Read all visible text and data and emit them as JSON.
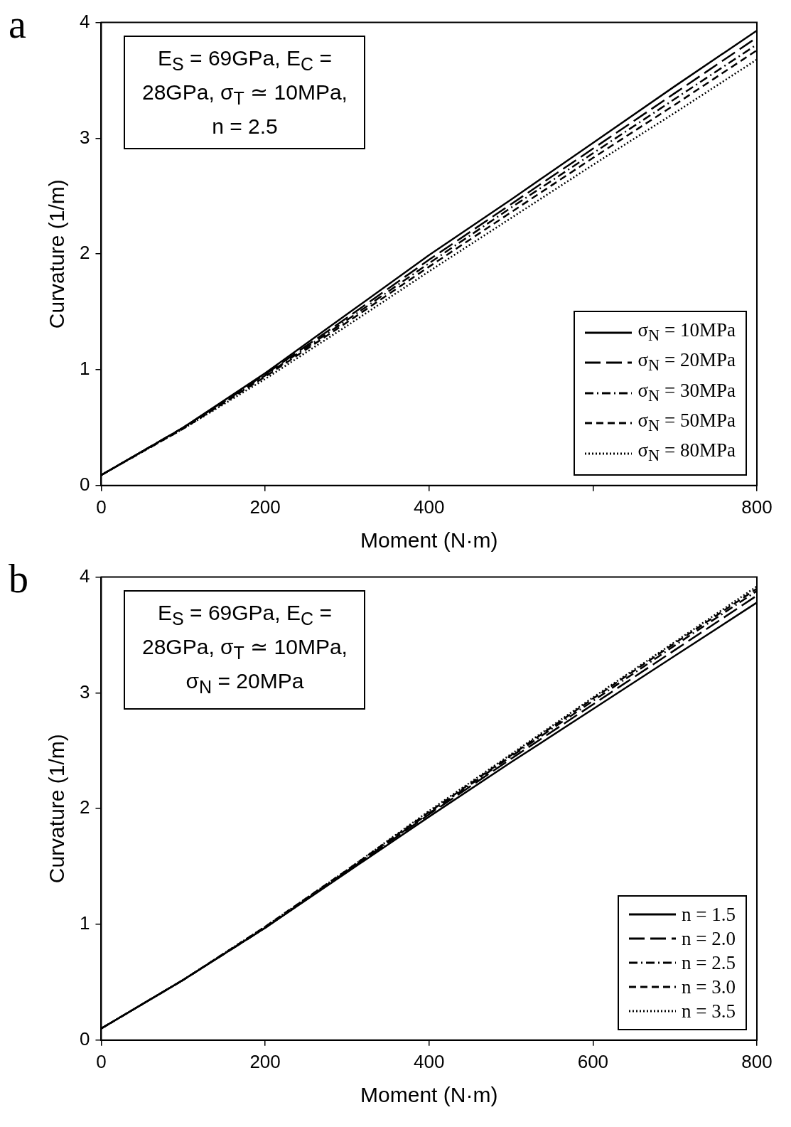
{
  "chart_data": [
    {
      "type": "line",
      "title": "a",
      "xlabel": "Moment (N·m)",
      "ylabel": "Curvature (1/m)",
      "x": [
        0,
        100,
        200,
        300,
        400,
        500,
        600,
        700,
        800
      ],
      "xlim": [
        0,
        800
      ],
      "xticks": [
        0,
        200,
        400,
        {
          "value": 600,
          "label": null
        },
        800
      ],
      "ylim": [
        0,
        4
      ],
      "yticks": [
        0,
        1,
        2,
        3,
        4
      ],
      "legend": "bottom right",
      "annotations": [
        "E$_{S}$ = 69GPa, E$_{C}$ = 28GPa, σ$_{T}$ ≃ 10MPa, n = 2.5"
      ],
      "series": [
        {
          "name": "σ$_{N}$ = 10MPa",
          "color": "#000000",
          "line_style": "solid",
          "values": [
            0.09,
            0.5,
            0.97,
            1.48,
            1.99,
            2.47,
            2.96,
            3.45,
            3.93
          ]
        },
        {
          "name": "σ$_{N}$ = 20MPa",
          "color": "#000000",
          "line_style": "longdash",
          "values": [
            0.09,
            0.5,
            0.96,
            1.45,
            1.95,
            2.43,
            2.91,
            3.39,
            3.87
          ]
        },
        {
          "name": "σ$_{N}$ = 30MPa",
          "color": "#000000",
          "line_style": "dashdot",
          "values": [
            0.09,
            0.5,
            0.95,
            1.43,
            1.92,
            2.4,
            2.87,
            3.34,
            3.81
          ]
        },
        {
          "name": "σ$_{N}$ = 50MPa",
          "color": "#000000",
          "line_style": "dashed",
          "values": [
            0.09,
            0.49,
            0.94,
            1.41,
            1.89,
            2.36,
            2.83,
            3.29,
            3.76
          ]
        },
        {
          "name": "σ$_{N}$ = 80MPa",
          "color": "#000000",
          "line_style": "dotted",
          "values": [
            0.09,
            0.49,
            0.92,
            1.38,
            1.85,
            2.31,
            2.77,
            3.22,
            3.68
          ]
        }
      ]
    },
    {
      "type": "line",
      "title": "b",
      "xlabel": "Moment (N·m)",
      "ylabel": "Curvature (1/m)",
      "x": [
        0,
        100,
        200,
        300,
        400,
        500,
        600,
        700,
        800
      ],
      "xlim": [
        0,
        800
      ],
      "xticks": [
        0,
        200,
        400,
        600,
        800
      ],
      "ylim": [
        0,
        4
      ],
      "yticks": [
        0,
        1,
        2,
        3,
        4
      ],
      "legend": "bottom right",
      "annotations": [
        "E$_{S}$ = 69GPa, E$_{C}$ = 28GPa, σ$_{T}$ ≃ 10MPa, σ$_{N}$ = 20MPa"
      ],
      "series": [
        {
          "name": "n = 1.5",
          "color": "#000000",
          "line_style": "solid",
          "values": [
            0.1,
            0.52,
            0.97,
            1.45,
            1.93,
            2.4,
            2.86,
            3.32,
            3.78
          ]
        },
        {
          "name": "n = 2.0",
          "color": "#000000",
          "line_style": "longdash",
          "values": [
            0.1,
            0.52,
            0.97,
            1.46,
            1.95,
            2.43,
            2.9,
            3.37,
            3.84
          ]
        },
        {
          "name": "n = 2.5",
          "color": "#000000",
          "line_style": "dashdot",
          "values": [
            0.1,
            0.52,
            0.97,
            1.46,
            1.96,
            2.45,
            2.93,
            3.41,
            3.88
          ]
        },
        {
          "name": "n = 3.0",
          "color": "#000000",
          "line_style": "dashed",
          "values": [
            0.1,
            0.52,
            0.98,
            1.47,
            1.97,
            2.46,
            2.95,
            3.43,
            3.9
          ]
        },
        {
          "name": "n = 3.5",
          "color": "#000000",
          "line_style": "dotted",
          "values": [
            0.1,
            0.52,
            0.98,
            1.47,
            1.98,
            2.47,
            2.96,
            3.44,
            3.92
          ]
        }
      ]
    }
  ]
}
